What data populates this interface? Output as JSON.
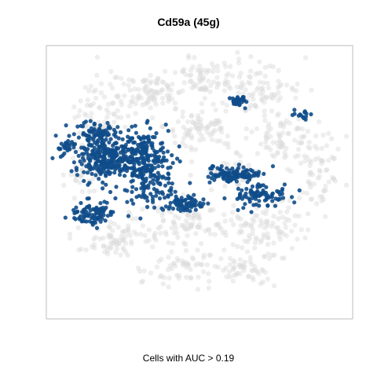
{
  "chart_data": {
    "type": "scatter",
    "title": "Cd59a (45g)",
    "xlabel": "Cells with AUC > 0.19",
    "ylabel": "",
    "grid": false,
    "series": [
      {
        "role": "background",
        "color": "#d9d9d9",
        "clusters": [
          {
            "cx": 0.17,
            "cy": 0.26,
            "rx": 0.09,
            "ry": 0.18,
            "n": 90
          },
          {
            "cx": 0.33,
            "cy": 0.16,
            "rx": 0.12,
            "ry": 0.08,
            "n": 90
          },
          {
            "cx": 0.51,
            "cy": 0.11,
            "rx": 0.09,
            "ry": 0.08,
            "n": 70
          },
          {
            "cx": 0.7,
            "cy": 0.14,
            "rx": 0.14,
            "ry": 0.09,
            "n": 90
          },
          {
            "cx": 0.5,
            "cy": 0.29,
            "rx": 0.12,
            "ry": 0.08,
            "n": 80
          },
          {
            "cx": 0.78,
            "cy": 0.34,
            "rx": 0.11,
            "ry": 0.09,
            "n": 70
          },
          {
            "cx": 0.9,
            "cy": 0.45,
            "rx": 0.08,
            "ry": 0.15,
            "n": 70
          },
          {
            "cx": 0.22,
            "cy": 0.71,
            "rx": 0.15,
            "ry": 0.08,
            "n": 80
          },
          {
            "cx": 0.46,
            "cy": 0.66,
            "rx": 0.16,
            "ry": 0.08,
            "n": 90
          },
          {
            "cx": 0.7,
            "cy": 0.66,
            "rx": 0.14,
            "ry": 0.1,
            "n": 90
          },
          {
            "cx": 0.44,
            "cy": 0.82,
            "rx": 0.13,
            "ry": 0.08,
            "n": 60
          },
          {
            "cx": 0.66,
            "cy": 0.82,
            "rx": 0.11,
            "ry": 0.07,
            "n": 60
          },
          {
            "cx": 0.1,
            "cy": 0.45,
            "rx": 0.06,
            "ry": 0.1,
            "n": 40
          },
          {
            "cx": 0.62,
            "cy": 0.46,
            "rx": 0.1,
            "ry": 0.06,
            "n": 40
          }
        ]
      },
      {
        "role": "highlighted",
        "color": "#0f4c8a",
        "clusters": [
          {
            "cx": 0.2,
            "cy": 0.4,
            "rx": 0.13,
            "ry": 0.09,
            "n": 320
          },
          {
            "cx": 0.32,
            "cy": 0.44,
            "rx": 0.08,
            "ry": 0.15,
            "n": 240
          },
          {
            "cx": 0.15,
            "cy": 0.32,
            "rx": 0.06,
            "ry": 0.05,
            "n": 60
          },
          {
            "cx": 0.14,
            "cy": 0.62,
            "rx": 0.07,
            "ry": 0.05,
            "n": 90
          },
          {
            "cx": 0.62,
            "cy": 0.47,
            "rx": 0.09,
            "ry": 0.03,
            "n": 120
          },
          {
            "cx": 0.7,
            "cy": 0.55,
            "rx": 0.1,
            "ry": 0.05,
            "n": 90
          },
          {
            "cx": 0.45,
            "cy": 0.58,
            "rx": 0.06,
            "ry": 0.03,
            "n": 70
          },
          {
            "cx": 0.63,
            "cy": 0.19,
            "rx": 0.03,
            "ry": 0.02,
            "n": 30
          },
          {
            "cx": 0.85,
            "cy": 0.24,
            "rx": 0.03,
            "ry": 0.02,
            "n": 15
          },
          {
            "cx": 0.05,
            "cy": 0.36,
            "rx": 0.03,
            "ry": 0.02,
            "n": 20
          }
        ]
      }
    ]
  }
}
